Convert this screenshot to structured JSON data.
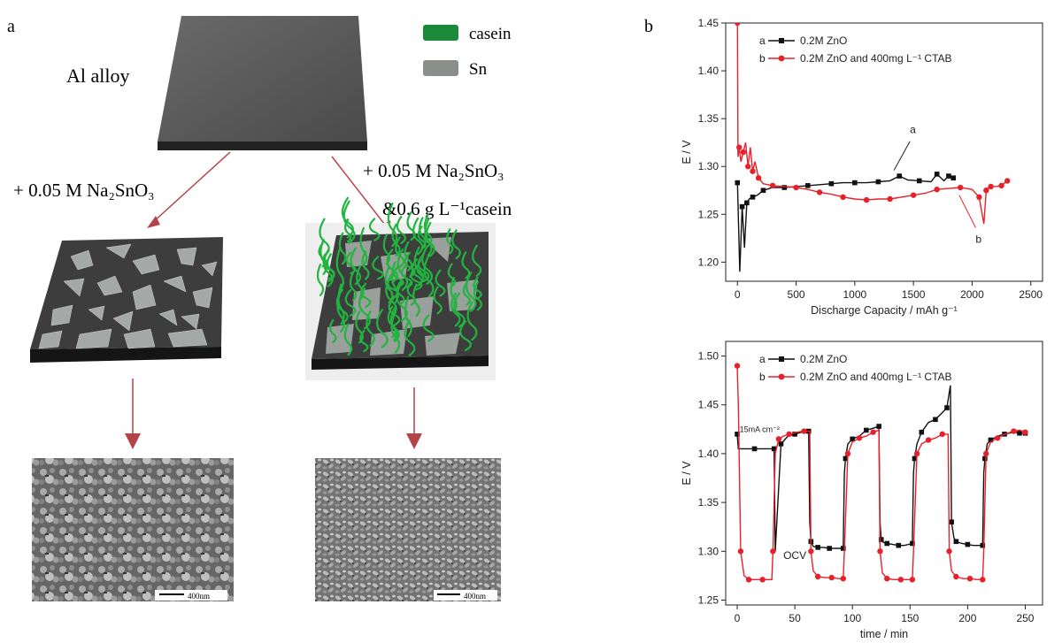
{
  "panel_a": {
    "label": "a",
    "substrate_label": "Al alloy",
    "legend": [
      {
        "name": "casein",
        "color": "#1a8a3a"
      },
      {
        "name": "Sn",
        "color": "#8a8f8c"
      }
    ],
    "left_condition": "+ 0.05 M Na₂SnO₃",
    "right_condition_line1": "+ 0.05 M Na₂SnO₃",
    "right_condition_line2": "&0.6 g L⁻¹casein",
    "scale_bar_left": "400nm",
    "scale_bar_right": "400nm",
    "arrow_color": "#b5434a"
  },
  "panel_b": {
    "label": "b"
  },
  "chart_data": [
    {
      "type": "line",
      "xlabel": "Discharge Capacity / mAh g⁻¹",
      "ylabel": "E / V",
      "xlim": [
        -100,
        2600
      ],
      "ylim": [
        1.18,
        1.45
      ],
      "xticks": [
        0,
        500,
        1000,
        1500,
        2000,
        2500
      ],
      "yticks": [
        1.2,
        1.25,
        1.3,
        1.35,
        1.4,
        1.45
      ],
      "legend_position": "top-left",
      "series": [
        {
          "name": "0.2M ZnO",
          "legend_letter": "a",
          "color": "#111111",
          "marker": "square",
          "x": [
            0,
            20,
            40,
            60,
            80,
            100,
            130,
            170,
            220,
            300,
            400,
            500,
            600,
            700,
            800,
            900,
            1000,
            1100,
            1200,
            1300,
            1380,
            1450,
            1550,
            1650,
            1700,
            1760,
            1800,
            1840
          ],
          "y": [
            1.283,
            1.19,
            1.258,
            1.215,
            1.262,
            1.266,
            1.268,
            1.27,
            1.275,
            1.278,
            1.278,
            1.279,
            1.28,
            1.281,
            1.282,
            1.283,
            1.283,
            1.283,
            1.284,
            1.285,
            1.29,
            1.286,
            1.285,
            1.284,
            1.292,
            1.285,
            1.29,
            1.288
          ]
        },
        {
          "name": "0.2M ZnO and 400mg L⁻¹ CTAB",
          "legend_letter": "b",
          "color": "#e8202a",
          "marker": "circle",
          "x": [
            0,
            5,
            15,
            30,
            50,
            70,
            90,
            110,
            130,
            150,
            180,
            220,
            300,
            400,
            500,
            600,
            700,
            800,
            900,
            1000,
            1100,
            1200,
            1300,
            1400,
            1500,
            1600,
            1700,
            1800,
            1900,
            2000,
            2060,
            2100,
            2120,
            2140,
            2160,
            2200,
            2250,
            2300
          ],
          "y": [
            1.45,
            1.31,
            1.32,
            1.305,
            1.315,
            1.325,
            1.3,
            1.32,
            1.295,
            1.305,
            1.288,
            1.282,
            1.28,
            1.279,
            1.278,
            1.276,
            1.273,
            1.271,
            1.268,
            1.266,
            1.265,
            1.266,
            1.266,
            1.268,
            1.27,
            1.272,
            1.276,
            1.277,
            1.278,
            1.276,
            1.268,
            1.24,
            1.275,
            1.278,
            1.279,
            1.279,
            1.28,
            1.285
          ]
        }
      ],
      "annotations": [
        {
          "text": "a",
          "x": 1470,
          "y": 1.335
        },
        {
          "text": "b",
          "x": 2030,
          "y": 1.22
        }
      ]
    },
    {
      "type": "line",
      "xlabel": "time / min",
      "ylabel": "E / V",
      "xlim": [
        -10,
        265
      ],
      "ylim": [
        1.245,
        1.515
      ],
      "xticks": [
        0,
        50,
        100,
        150,
        200,
        250
      ],
      "yticks": [
        1.25,
        1.3,
        1.35,
        1.4,
        1.45,
        1.5
      ],
      "legend_position": "top-left",
      "series": [
        {
          "name": "0.2M ZnO",
          "legend_letter": "a",
          "color": "#111111",
          "marker": "square",
          "x": [
            0,
            1,
            15,
            30,
            32,
            33,
            38,
            44,
            50,
            56,
            62,
            63,
            64,
            66,
            70,
            75,
            80,
            85,
            92,
            93,
            94,
            96,
            100,
            106,
            112,
            118,
            123,
            124,
            125,
            127,
            130,
            135,
            140,
            145,
            152,
            153,
            154,
            156,
            160,
            166,
            172,
            178,
            182,
            185,
            186,
            188,
            190,
            195,
            200,
            205,
            213,
            214,
            215,
            217,
            220,
            226,
            232,
            240,
            245,
            250
          ],
          "y": [
            1.42,
            1.405,
            1.405,
            1.405,
            1.405,
            1.3,
            1.41,
            1.418,
            1.42,
            1.422,
            1.423,
            1.33,
            1.31,
            1.305,
            1.304,
            1.304,
            1.303,
            1.303,
            1.303,
            1.38,
            1.395,
            1.41,
            1.415,
            1.418,
            1.424,
            1.426,
            1.428,
            1.33,
            1.312,
            1.309,
            1.308,
            1.307,
            1.306,
            1.306,
            1.308,
            1.38,
            1.395,
            1.41,
            1.422,
            1.432,
            1.435,
            1.442,
            1.447,
            1.47,
            1.33,
            1.314,
            1.31,
            1.308,
            1.307,
            1.306,
            1.306,
            1.38,
            1.395,
            1.41,
            1.414,
            1.418,
            1.42,
            1.422,
            1.421,
            1.421
          ]
        },
        {
          "name": "0.2M ZnO and 400mg L⁻¹ CTAB",
          "legend_letter": "b",
          "color": "#e8202a",
          "marker": "circle",
          "x": [
            0,
            1,
            3,
            6,
            10,
            16,
            22,
            30,
            31,
            33,
            36,
            40,
            45,
            52,
            58,
            63,
            64,
            66,
            70,
            76,
            82,
            88,
            92,
            93,
            96,
            100,
            106,
            112,
            118,
            123,
            124,
            126,
            130,
            136,
            142,
            148,
            152,
            153,
            156,
            160,
            166,
            172,
            178,
            183,
            184,
            186,
            190,
            196,
            202,
            208,
            213,
            214,
            216,
            220,
            226,
            232,
            240,
            245,
            250
          ],
          "y": [
            1.49,
            1.45,
            1.3,
            1.275,
            1.271,
            1.271,
            1.271,
            1.271,
            1.3,
            1.4,
            1.415,
            1.418,
            1.42,
            1.422,
            1.423,
            1.423,
            1.3,
            1.28,
            1.274,
            1.273,
            1.273,
            1.272,
            1.272,
            1.3,
            1.4,
            1.412,
            1.416,
            1.418,
            1.422,
            1.424,
            1.3,
            1.278,
            1.272,
            1.271,
            1.271,
            1.271,
            1.271,
            1.3,
            1.4,
            1.41,
            1.414,
            1.416,
            1.42,
            1.42,
            1.3,
            1.28,
            1.274,
            1.272,
            1.272,
            1.271,
            1.271,
            1.3,
            1.4,
            1.412,
            1.416,
            1.42,
            1.423,
            1.424,
            1.422
          ]
        }
      ],
      "annotations": [
        {
          "text": "15mA cm⁻²",
          "x": 2,
          "y": 1.422
        },
        {
          "text": "OCV",
          "x": 40,
          "y": 1.292
        }
      ]
    }
  ]
}
